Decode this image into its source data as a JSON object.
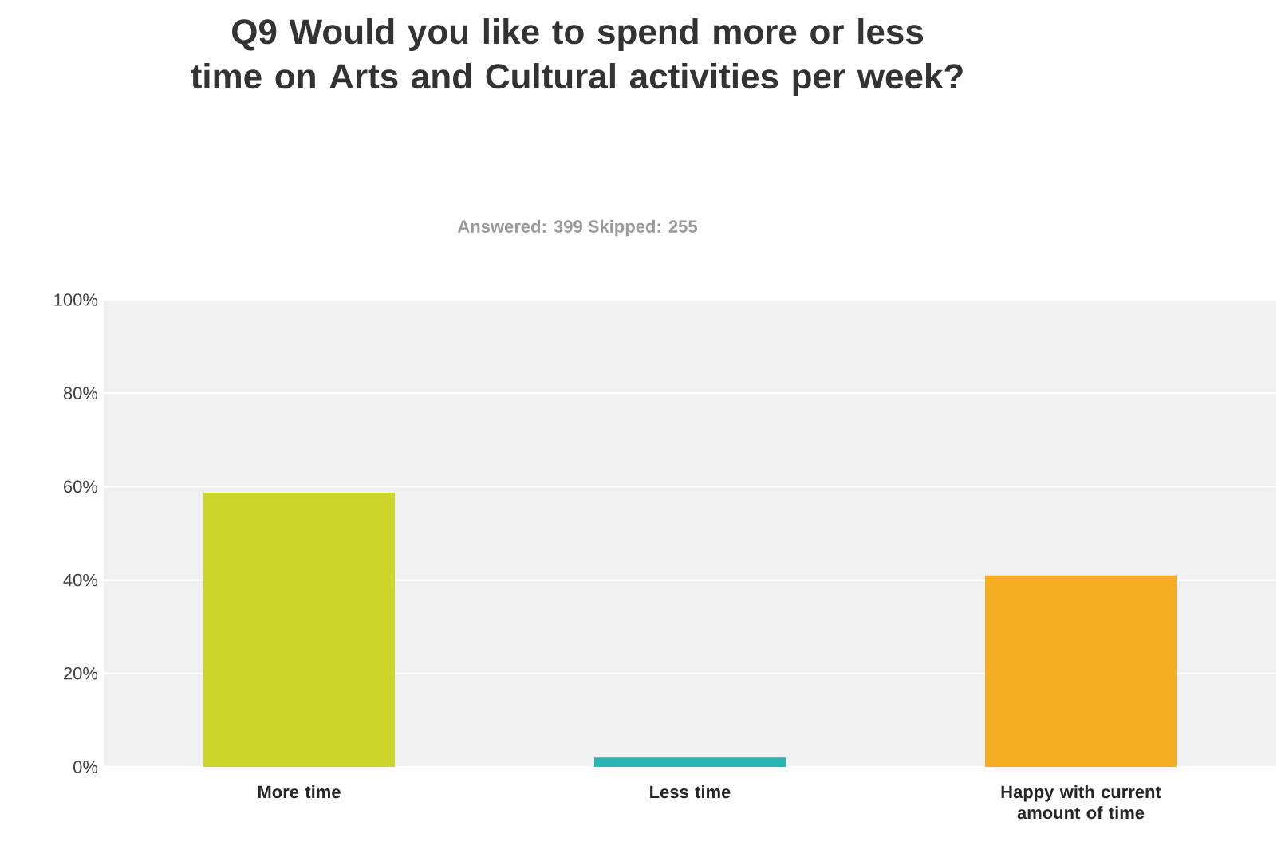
{
  "chart_data": {
    "type": "bar",
    "title": "Q9 Would you like to spend more or less time on Arts and Cultural activities per week?",
    "subtitle": "Answered: 399    Skipped: 255",
    "categories": [
      "More time",
      "Less time",
      "Happy with current amount of time"
    ],
    "values": [
      58.7,
      2,
      41
    ],
    "colors": [
      "#cdd42a",
      "#2ab5b5",
      "#f5ae22"
    ],
    "ylim": [
      0,
      100
    ],
    "yticks": [
      {
        "value": 0,
        "label": "0%"
      },
      {
        "value": 20,
        "label": "20%"
      },
      {
        "value": 40,
        "label": "40%"
      },
      {
        "value": 60,
        "label": "60%"
      },
      {
        "value": 80,
        "label": "80%"
      },
      {
        "value": 100,
        "label": "100%"
      }
    ],
    "grid": "y"
  }
}
